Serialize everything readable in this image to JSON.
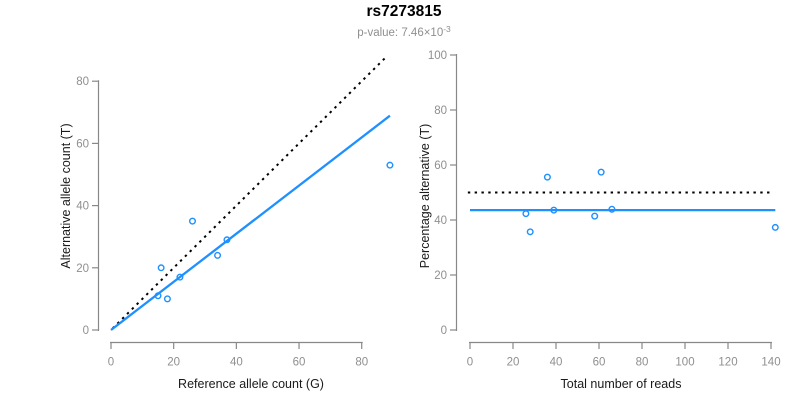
{
  "header": {
    "title": "rs7273815",
    "subtitle_prefix": "p-value: 7.46×10",
    "subtitle_exponent": "-3"
  },
  "colors": {
    "point_blue": "#1E90FF",
    "fit_blue": "#1E90FF",
    "reference_black": "#000000",
    "axis_gray": "#888888",
    "tick_label_gray": "#8f8f8f",
    "axis_title_dark": "#1a1a1a",
    "background": "#ffffff"
  },
  "chart_data": [
    {
      "id": "allele-count-scatter",
      "type": "scatter",
      "xlabel": "Reference allele count (G)",
      "ylabel": "Alternative allele count (T)",
      "x": [
        16,
        26,
        15,
        22,
        34,
        37,
        18,
        89
      ],
      "y": [
        20,
        35,
        11,
        17,
        24,
        29,
        10,
        53
      ],
      "xticks": [
        0,
        20,
        40,
        60,
        80
      ],
      "yticks": [
        0,
        20,
        40,
        60,
        80
      ],
      "xlim": [
        0,
        89
      ],
      "ylim": [
        0,
        88
      ],
      "grid": false,
      "legend": null,
      "lines": [
        {
          "name": "identity-line",
          "style": "dotted",
          "color": "#000000",
          "x1": 0.5,
          "y1": 0.5,
          "x2": 88,
          "y2": 88
        },
        {
          "name": "fit-line",
          "style": "solid",
          "color": "#1E90FF",
          "x1": 0,
          "y1": 0,
          "x2": 89,
          "y2": 68.9
        }
      ]
    },
    {
      "id": "percentage-alternative-scatter",
      "type": "scatter",
      "xlabel": "Total number of reads",
      "ylabel": "Percentage alternative (T)",
      "x": [
        36,
        61,
        26,
        39,
        58,
        66,
        28,
        142
      ],
      "y": [
        55.6,
        57.4,
        42.3,
        43.6,
        41.4,
        43.9,
        35.7,
        37.3
      ],
      "xticks": [
        0,
        20,
        40,
        60,
        80,
        100,
        120,
        140
      ],
      "yticks": [
        0,
        20,
        40,
        60,
        80,
        100
      ],
      "xlim": [
        0,
        143
      ],
      "ylim": [
        0,
        100
      ],
      "grid": false,
      "legend": null,
      "lines": [
        {
          "name": "null-50pct-line",
          "style": "dotted",
          "color": "#000000",
          "x1": -1,
          "y1": 50,
          "x2": 140,
          "y2": 50
        },
        {
          "name": "mean-pct-line",
          "style": "solid",
          "color": "#1E90FF",
          "x1": 0,
          "y1": 43.6,
          "x2": 142,
          "y2": 43.6
        }
      ]
    }
  ]
}
